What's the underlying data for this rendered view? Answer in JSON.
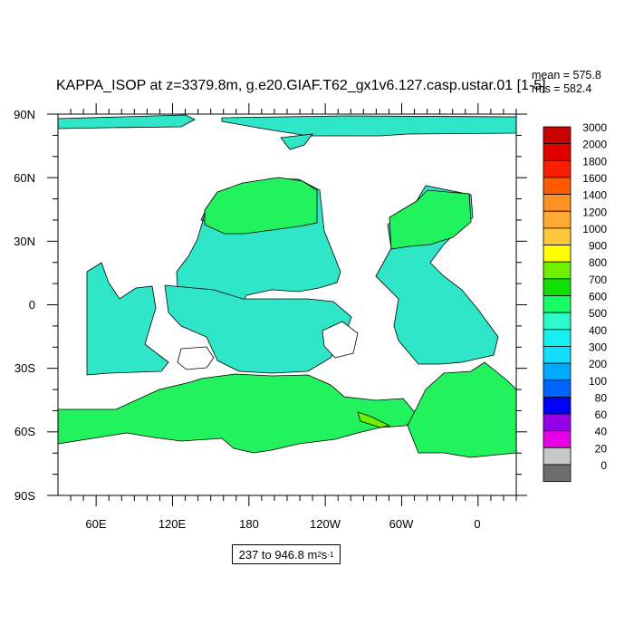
{
  "title": "KAPPA_ISOP at z=3379.8m, g.e20.GIAF.T62_gx1v6.127.casp.ustar.01 [1-5]",
  "stats": {
    "mean": "mean = 575.8",
    "rms": "rms = 582.4"
  },
  "range_label": {
    "text": "237 to 946.8 m",
    "sup1": "2",
    "mid": " s",
    "sup2": "-1"
  },
  "map": {
    "projection": "cylindrical equidistant, centred near 200°E",
    "lon_range": [
      30,
      390
    ],
    "lat_range": [
      -90,
      90
    ],
    "lat_ticks": [
      "90N",
      "60N",
      "30N",
      "0",
      "30S",
      "60S",
      "90S"
    ],
    "lon_ticks": [
      "60E",
      "120E",
      "180",
      "120W",
      "60W",
      "0"
    ],
    "ocean_fill_colors": {
      "main": "#2fe6c8",
      "high": "#22f25e",
      "edge": "#12d9f2",
      "land": "#ffffff"
    }
  },
  "colorbar": {
    "labels": [
      "3000",
      "2000",
      "1800",
      "1600",
      "1400",
      "1200",
      "1000",
      "900",
      "800",
      "700",
      "600",
      "500",
      "400",
      "300",
      "200",
      "100",
      "80",
      "60",
      "40",
      "20",
      "0"
    ],
    "colors": [
      "#c80000",
      "#e10000",
      "#f81e00",
      "#ff5a00",
      "#ff9122",
      "#ffaa32",
      "#ffc83c",
      "#ffff00",
      "#6ef000",
      "#0fe000",
      "#14ff64",
      "#2dfac8",
      "#14f0f0",
      "#14dcff",
      "#00aaff",
      "#0064ff",
      "#0000ff",
      "#9600e6",
      "#e600e6",
      "#c8c8c8",
      "#6e6e6e"
    ]
  }
}
